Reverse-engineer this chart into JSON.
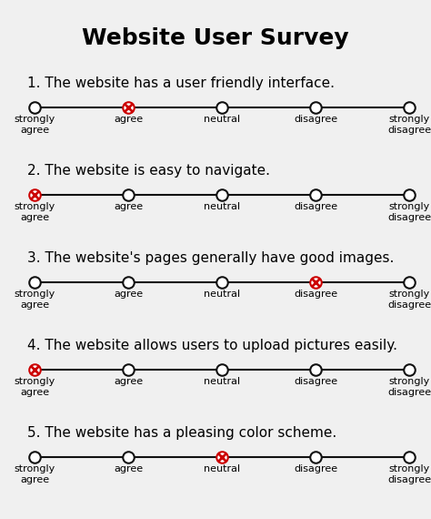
{
  "title": "Website User Survey",
  "background_color": "#f0f0f0",
  "questions": [
    "1. The website has a user friendly interface.",
    "2. The website is easy to navigate.",
    "3. The website's pages generally have good images.",
    "4. The website allows users to upload pictures easily.",
    "5. The website has a pleasing color scheme."
  ],
  "scale_labels": [
    "strongly\nagree",
    "agree",
    "neutral",
    "disagree",
    "strongly\ndisagree"
  ],
  "selected": [
    1,
    0,
    3,
    0,
    2
  ],
  "title_fontsize": 18,
  "question_fontsize": 11,
  "label_fontsize": 8,
  "line_color": "#111111",
  "circle_color": "#111111",
  "selected_color": "#cc0000"
}
